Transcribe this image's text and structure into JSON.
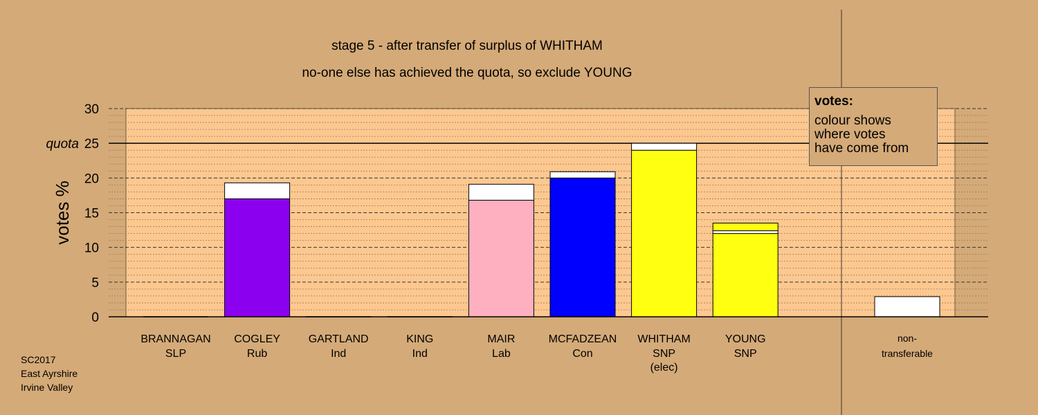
{
  "chart_data": {
    "type": "bar",
    "title": "stage 5 - after transfer of surplus of WHITHAM",
    "subtitle": "no-one else has achieved the quota, so exclude YOUNG",
    "ylabel": "votes %",
    "ylim": [
      0,
      30
    ],
    "yticks": [
      "0",
      "5",
      "10",
      "15",
      "20",
      "25",
      "30"
    ],
    "quota_label": "quota",
    "quota_value": 25,
    "grid": true,
    "legend": {
      "position": "top-right",
      "title": "votes:",
      "lines": [
        "colour shows",
        "where votes",
        "have come from"
      ]
    },
    "categories": [
      {
        "name": "BRANNAGAN",
        "party": "SLP",
        "extra": "",
        "own": 0,
        "own_color": "#ffffff",
        "transfer": 0
      },
      {
        "name": "COGLEY",
        "party": "Rub",
        "extra": "",
        "own": 17.0,
        "own_color": "#8b00ee",
        "transfer": 2.3
      },
      {
        "name": "GARTLAND",
        "party": "Ind",
        "extra": "",
        "own": 0,
        "own_color": "#ffffff",
        "transfer": 0
      },
      {
        "name": "KING",
        "party": "Ind",
        "extra": "",
        "own": 0,
        "own_color": "#ffffff",
        "transfer": 0
      },
      {
        "name": "MAIR",
        "party": "Lab",
        "extra": "",
        "own": 16.8,
        "own_color": "#ffb0c0",
        "transfer": 2.3
      },
      {
        "name": "MCFADZEAN",
        "party": "Con",
        "extra": "",
        "own": 20.0,
        "own_color": "#0000ff",
        "transfer": 0.9
      },
      {
        "name": "WHITHAM",
        "party": "SNP",
        "extra": "(elec)",
        "own": 24.0,
        "own_color": "#ffff11",
        "transfer": 1.0
      },
      {
        "name": "YOUNG",
        "party": "SNP",
        "extra": "",
        "own": 12.0,
        "own_color": "#ffff11",
        "transfer": 1.1,
        "own_extra": 0.4
      }
    ],
    "nontransferable": {
      "label_line1": "non-",
      "label_line2": "transferable",
      "value": 2.9
    }
  },
  "footer": {
    "line1": "SC2017",
    "line2": "East Ayrshire",
    "line3": "Irvine Valley"
  },
  "colors": {
    "background": "#d4aa78",
    "plot_area": "#fcc890",
    "transfer_fill": "#ffffff"
  }
}
